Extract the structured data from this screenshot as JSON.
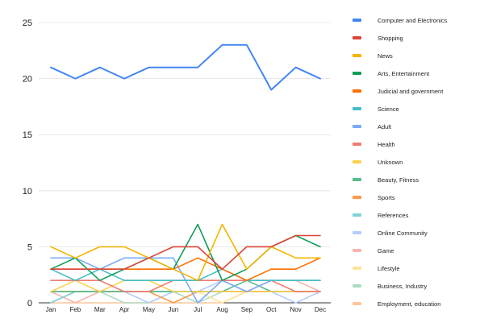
{
  "chart_data": {
    "type": "line",
    "title": "",
    "xlabel": "",
    "ylabel": "",
    "ylim": [
      0,
      25
    ],
    "yticks": [
      0,
      5,
      10,
      15,
      20,
      25
    ],
    "grid": "horizontal",
    "legend_position": "right",
    "categories": [
      "Jan",
      "Feb",
      "Mar",
      "Apr",
      "May",
      "Jun",
      "Jul",
      "Aug",
      "Sep",
      "Oct",
      "Nov",
      "Dec"
    ],
    "series": [
      {
        "name": "Computer and Electronics",
        "color": "#4285f4",
        "values": [
          21,
          20,
          21,
          20,
          21,
          21,
          21,
          23,
          23,
          19,
          21,
          20
        ]
      },
      {
        "name": "Shopping",
        "color": "#db4437",
        "values": [
          3,
          3,
          3,
          3,
          4,
          5,
          5,
          3,
          5,
          5,
          6,
          6
        ]
      },
      {
        "name": "News",
        "color": "#f4b400",
        "values": [
          5,
          4,
          5,
          5,
          4,
          3,
          2,
          7,
          3,
          5,
          4,
          4
        ]
      },
      {
        "name": "Arts, Entertainment",
        "color": "#0f9d58",
        "values": [
          3,
          4,
          2,
          3,
          4,
          3,
          7,
          2,
          3,
          5,
          6,
          5
        ]
      },
      {
        "name": "Judicial and government",
        "color": "#ff6d01",
        "values": [
          3,
          3,
          3,
          3,
          3,
          3,
          4,
          3,
          2,
          3,
          3,
          4
        ]
      },
      {
        "name": "Science",
        "color": "#46bdc6",
        "values": [
          3,
          2,
          3,
          2,
          2,
          2,
          2,
          3,
          2,
          2,
          2,
          2
        ]
      },
      {
        "name": "Adult",
        "color": "#7baaf7",
        "values": [
          4,
          4,
          3,
          4,
          4,
          4,
          0,
          2,
          1,
          2,
          2,
          2
        ]
      },
      {
        "name": "Health",
        "color": "#f07b72",
        "values": [
          2,
          2,
          2,
          1,
          1,
          2,
          2,
          2,
          2,
          2,
          1,
          1
        ]
      },
      {
        "name": "Unknown",
        "color": "#fcd04f",
        "values": [
          1,
          2,
          1,
          2,
          2,
          1,
          1,
          1,
          1,
          1,
          1,
          1
        ]
      },
      {
        "name": "Beauty, Fitness",
        "color": "#57bb8a",
        "values": [
          1,
          1,
          1,
          1,
          1,
          1,
          1,
          1,
          2,
          1,
          1,
          1
        ]
      },
      {
        "name": "Sports",
        "color": "#ff994d",
        "values": [
          1,
          1,
          1,
          1,
          1,
          0,
          1,
          1,
          1,
          1,
          1,
          1
        ]
      },
      {
        "name": "References",
        "color": "#7ed1d7",
        "values": [
          0,
          1,
          1,
          1,
          1,
          1,
          1,
          1,
          1,
          1,
          1,
          1
        ]
      },
      {
        "name": "Online Community",
        "color": "#b3cefb",
        "values": [
          0,
          1,
          1,
          1,
          0,
          1,
          1,
          2,
          1,
          1,
          0,
          1
        ]
      },
      {
        "name": "Game",
        "color": "#f7b4ae",
        "values": [
          1,
          0,
          1,
          1,
          1,
          1,
          1,
          1,
          1,
          2,
          2,
          1
        ]
      },
      {
        "name": "Lifestyle",
        "color": "#fde49b",
        "values": [
          0,
          1,
          1,
          1,
          1,
          1,
          1,
          0,
          1,
          1,
          1,
          1
        ]
      },
      {
        "name": "Business, Industry",
        "color": "#abdcc4",
        "values": [
          1,
          1,
          1,
          0,
          0,
          1,
          0,
          1,
          1,
          1,
          1,
          1
        ]
      },
      {
        "name": "Employment, education",
        "color": "#ffc599",
        "values": [
          0,
          0,
          0,
          0,
          0,
          0,
          0,
          0,
          1,
          1,
          1,
          1
        ]
      }
    ]
  }
}
